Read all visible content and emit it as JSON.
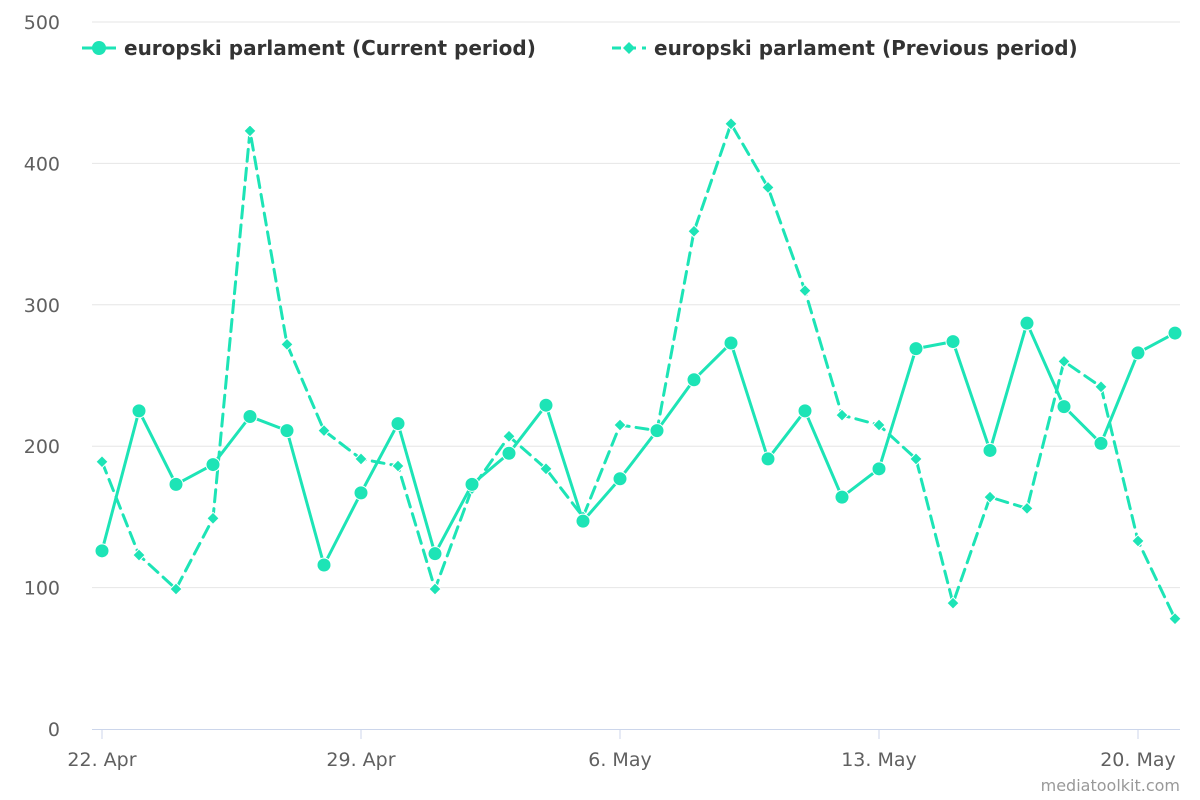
{
  "colors": {
    "series": "#1de4b6",
    "grid": "#e6e6e6",
    "axis": "#ccd6eb",
    "tick_text": "#606060",
    "legend_text": "#333333",
    "credit_text": "#999999"
  },
  "legend": {
    "placement": "top-center",
    "items": [
      {
        "label": "europski parlament (Current period)",
        "marker": "circle",
        "dash": "solid"
      },
      {
        "label": "europski parlament (Previous period)",
        "marker": "diamond",
        "dash": "dashed"
      }
    ]
  },
  "credit": "mediatoolkit.com",
  "chart_data": {
    "type": "line",
    "grid": true,
    "ylim": [
      0,
      500
    ],
    "yticks": [
      0,
      100,
      200,
      300,
      400,
      500
    ],
    "x": [
      "2025-04-22",
      "2025-04-23",
      "2025-04-24",
      "2025-04-25",
      "2025-04-26",
      "2025-04-27",
      "2025-04-28",
      "2025-04-29",
      "2025-04-30",
      "2025-05-01",
      "2025-05-02",
      "2025-05-03",
      "2025-05-04",
      "2025-05-05",
      "2025-05-06",
      "2025-05-07",
      "2025-05-08",
      "2025-05-09",
      "2025-05-10",
      "2025-05-11",
      "2025-05-12",
      "2025-05-13",
      "2025-05-14",
      "2025-05-15",
      "2025-05-16",
      "2025-05-17",
      "2025-05-18",
      "2025-05-19",
      "2025-05-20",
      "2025-05-21"
    ],
    "xticks": [
      {
        "date": "2025-04-22",
        "label": "22. Apr"
      },
      {
        "date": "2025-04-29",
        "label": "29. Apr"
      },
      {
        "date": "2025-05-06",
        "label": "6. May"
      },
      {
        "date": "2025-05-13",
        "label": "13. May"
      },
      {
        "date": "2025-05-20",
        "label": "20. May"
      }
    ],
    "series": [
      {
        "name": "europski parlament (Current period)",
        "marker": "circle",
        "dash": "solid",
        "values": [
          126,
          225,
          173,
          187,
          221,
          211,
          116,
          167,
          216,
          124,
          173,
          195,
          229,
          147,
          177,
          211,
          247,
          273,
          191,
          225,
          164,
          184,
          269,
          274,
          197,
          287,
          228,
          202,
          266,
          280
        ]
      },
      {
        "name": "europski parlament (Previous period)",
        "marker": "diamond",
        "dash": "dashed",
        "values": [
          189,
          123,
          99,
          149,
          423,
          272,
          211,
          191,
          186,
          99,
          170,
          207,
          184,
          150,
          215,
          211,
          352,
          428,
          383,
          310,
          222,
          215,
          191,
          89,
          164,
          156,
          260,
          242,
          133,
          78
        ]
      }
    ]
  }
}
